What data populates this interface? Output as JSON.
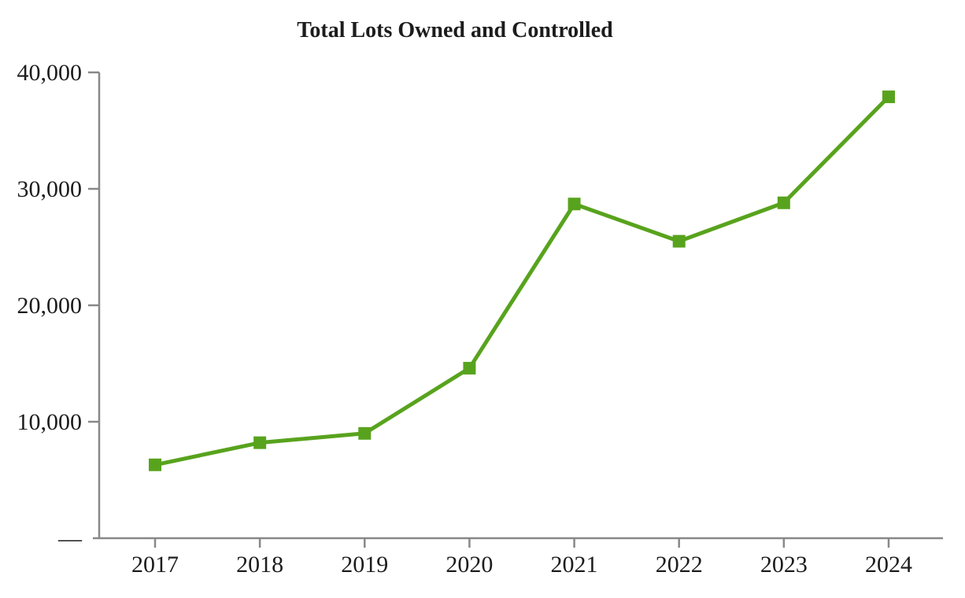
{
  "title": "Total Lots Owned and Controlled",
  "colors": {
    "line": "#58A31D",
    "marker": "#58A31D",
    "axis": "#888888",
    "text": "#1c1c1c",
    "background": "#ffffff"
  },
  "chart_data": {
    "type": "line",
    "title": "Total Lots Owned and Controlled",
    "categories": [
      "2017",
      "2018",
      "2019",
      "2020",
      "2021",
      "2022",
      "2023",
      "2024"
    ],
    "series": [
      {
        "name": "Total Lots Owned and Controlled",
        "values": [
          6300,
          8200,
          9000,
          14600,
          28700,
          25500,
          28800,
          37900
        ],
        "color": "#58A31D",
        "marker": "square"
      }
    ],
    "xlabel": "",
    "ylabel": "",
    "ylim": [
      0,
      40000
    ],
    "y_ticks": [
      {
        "value": 0,
        "label": "—"
      },
      {
        "value": 10000,
        "label": "10,000"
      },
      {
        "value": 20000,
        "label": "20,000"
      },
      {
        "value": 30000,
        "label": "30,000"
      },
      {
        "value": 40000,
        "label": "40,000"
      }
    ],
    "grid": false,
    "legend_position": "none"
  }
}
